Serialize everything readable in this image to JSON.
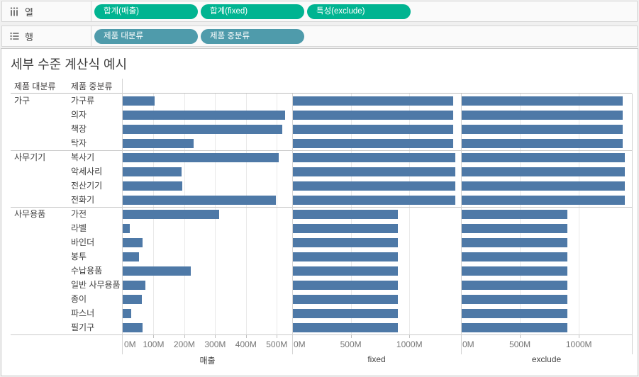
{
  "shelves": {
    "columns": {
      "label": "열",
      "pill_color": "#00b491",
      "pills": [
        "합계(매출)",
        "합계(fixed)",
        "특성(exclude)"
      ]
    },
    "rows": {
      "label": "행",
      "pill_color": "#4f9bab",
      "pills": [
        "제품 대분류",
        "제품 중분류"
      ]
    }
  },
  "worksheet": {
    "title": "세부 수준 계산식 예시"
  },
  "table": {
    "header_major": "제품 대분류",
    "header_minor": "제품 중분류"
  },
  "colors": {
    "bar": "#4e79a7"
  },
  "chart_data": {
    "type": "bar",
    "orientation": "horizontal",
    "title": "세부 수준 계산식 예시",
    "row_header_fields": [
      "제품 대분류",
      "제품 중분류"
    ],
    "unit": "M",
    "groups": [
      {
        "category": "가구",
        "items": [
          {
            "label": "가구류",
            "sales": 103,
            "fixed": 1373,
            "exclude": 1373
          },
          {
            "label": "의자",
            "sales": 527,
            "fixed": 1373,
            "exclude": 1373
          },
          {
            "label": "책장",
            "sales": 517,
            "fixed": 1373,
            "exclude": 1373
          },
          {
            "label": "탁자",
            "sales": 231,
            "fixed": 1373,
            "exclude": 1373
          }
        ]
      },
      {
        "category": "사무기기",
        "items": [
          {
            "label": "복사기",
            "sales": 506,
            "fixed": 1390,
            "exclude": 1390
          },
          {
            "label": "악세사리",
            "sales": 191,
            "fixed": 1390,
            "exclude": 1390
          },
          {
            "label": "전산기기",
            "sales": 194,
            "fixed": 1390,
            "exclude": 1390
          },
          {
            "label": "전화기",
            "sales": 498,
            "fixed": 1390,
            "exclude": 1390
          }
        ]
      },
      {
        "category": "사무용품",
        "items": [
          {
            "label": "가전",
            "sales": 313,
            "fixed": 900,
            "exclude": 900
          },
          {
            "label": "라벨",
            "sales": 23,
            "fixed": 900,
            "exclude": 900
          },
          {
            "label": "바인더",
            "sales": 65,
            "fixed": 900,
            "exclude": 900
          },
          {
            "label": "봉투",
            "sales": 53,
            "fixed": 900,
            "exclude": 900
          },
          {
            "label": "수납용품",
            "sales": 221,
            "fixed": 900,
            "exclude": 900
          },
          {
            "label": "일반 사무용품",
            "sales": 74,
            "fixed": 900,
            "exclude": 900
          },
          {
            "label": "종이",
            "sales": 62,
            "fixed": 900,
            "exclude": 900
          },
          {
            "label": "파스너",
            "sales": 28,
            "fixed": 900,
            "exclude": 900
          },
          {
            "label": "필기구",
            "sales": 65,
            "fixed": 900,
            "exclude": 900
          }
        ]
      }
    ],
    "panels": [
      {
        "title": "매출",
        "key": "sales",
        "tick_labels": [
          "0M",
          "100M",
          "200M",
          "300M",
          "400M",
          "500M"
        ],
        "tick_values": [
          0,
          100,
          200,
          300,
          400,
          500
        ],
        "axis_max": 550
      },
      {
        "title": "fixed",
        "key": "fixed",
        "tick_labels": [
          "0M",
          "500M",
          "1000M"
        ],
        "tick_values": [
          0,
          500,
          1000
        ],
        "axis_max": 1440
      },
      {
        "title": "exclude",
        "key": "exclude",
        "tick_labels": [
          "0M",
          "500M",
          "1000M"
        ],
        "tick_values": [
          0,
          500,
          1000
        ],
        "axis_max": 1450
      }
    ]
  }
}
